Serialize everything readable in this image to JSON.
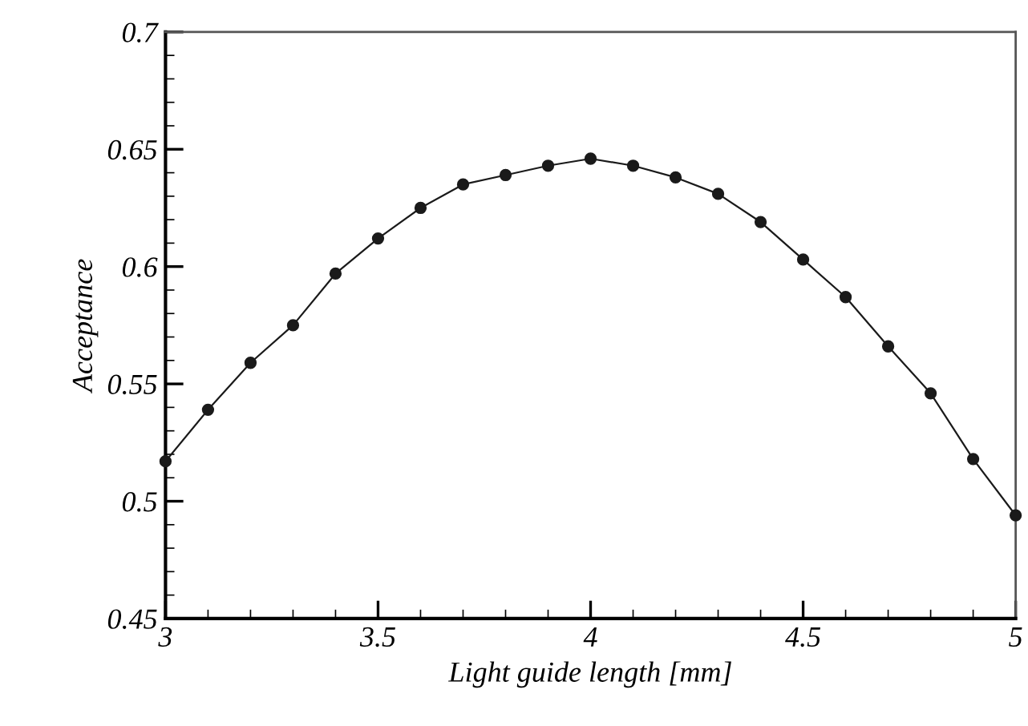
{
  "chart_data": {
    "type": "line",
    "xlabel": "Light guide length [mm]",
    "ylabel": "Acceptance",
    "x": [
      3.0,
      3.1,
      3.2,
      3.3,
      3.4,
      3.5,
      3.6,
      3.7,
      3.8,
      3.9,
      4.0,
      4.1,
      4.2,
      4.3,
      4.4,
      4.5,
      4.6,
      4.7,
      4.8,
      4.9,
      5.0
    ],
    "series": [
      {
        "color": "#1a1a1a",
        "values": [
          0.517,
          0.539,
          0.559,
          0.575,
          0.597,
          0.612,
          0.625,
          0.635,
          0.639,
          0.643,
          0.646,
          0.643,
          0.638,
          0.631,
          0.619,
          0.603,
          0.587,
          0.566,
          0.546,
          0.518,
          0.494
        ]
      }
    ],
    "xlim": [
      3,
      5
    ],
    "ylim": [
      0.45,
      0.7
    ],
    "xticks": [
      3,
      3.5,
      4,
      4.5,
      5
    ],
    "yticks": [
      0.45,
      0.5,
      0.55,
      0.6,
      0.65,
      0.7
    ],
    "marker": "circle",
    "line_style": "solid",
    "grid": false,
    "legend": false
  }
}
